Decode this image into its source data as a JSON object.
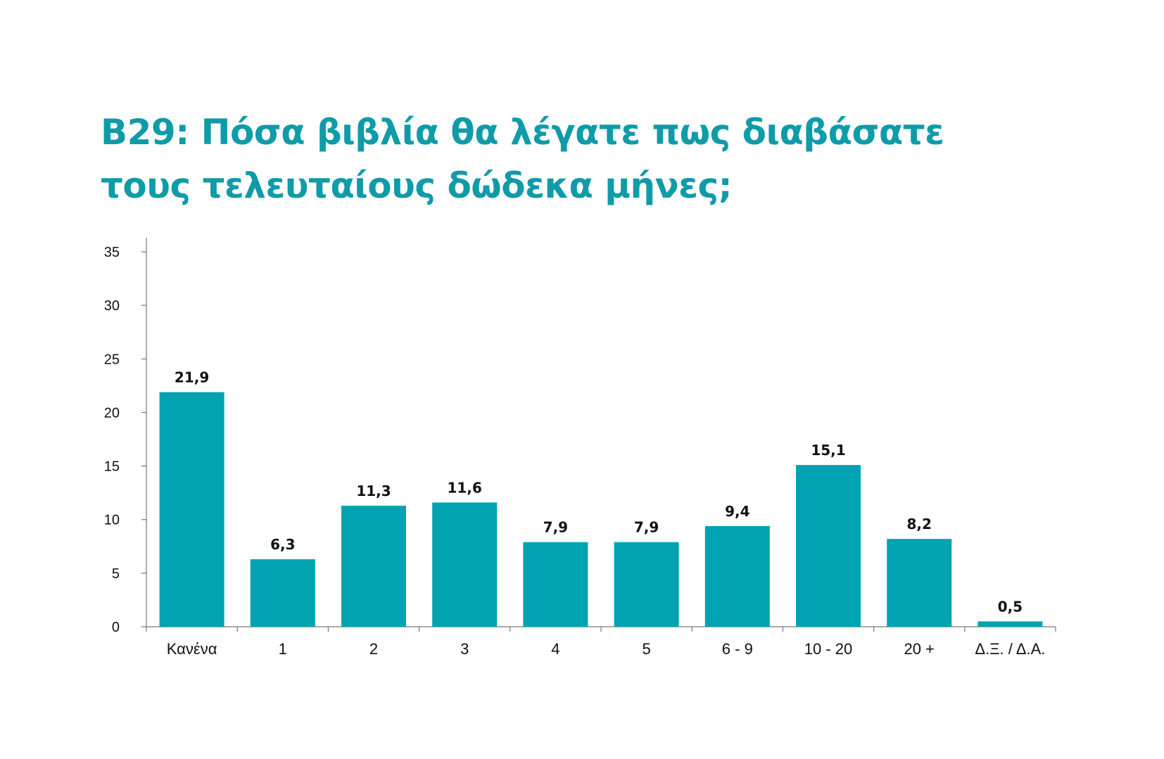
{
  "chart_data": {
    "type": "bar",
    "title_lines": [
      "B29: Πόσα βιβλία θα λέγατε πως διαβάσατε",
      "τους τελευταίους δώδεκα μήνες;"
    ],
    "xlabel": "",
    "ylabel": "",
    "categories": [
      "Κανένα",
      "1",
      "2",
      "3",
      "4",
      "5",
      "6 - 9",
      "10 - 20",
      "20 +",
      "Δ.Ξ. / Δ.Α."
    ],
    "values": [
      21.9,
      6.3,
      11.3,
      11.6,
      7.9,
      7.9,
      9.4,
      15.1,
      8.2,
      0.5
    ],
    "value_labels": [
      "21,9",
      "6,3",
      "11,3",
      "11,6",
      "7,9",
      "7,9",
      "9,4",
      "15,1",
      "8,2",
      "0,5"
    ],
    "ylim": [
      0,
      35
    ],
    "y_ticks": [
      0,
      5,
      10,
      15,
      20,
      25,
      30,
      35
    ],
    "grid": false,
    "legend": "none",
    "bar_color": "#00a3b1",
    "title_color": "#0f9ba8"
  }
}
